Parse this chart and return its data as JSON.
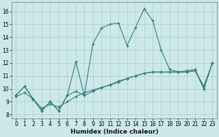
{
  "xlabel": "Humidex (Indice chaleur)",
  "bg_color": "#cde8e8",
  "line_color": "#2e7d7d",
  "grid_color": "#a8cccc",
  "xlim": [
    -0.5,
    23.5
  ],
  "ylim": [
    7.7,
    16.7
  ],
  "xticks": [
    0,
    1,
    2,
    3,
    4,
    5,
    6,
    7,
    8,
    9,
    10,
    11,
    12,
    13,
    14,
    15,
    16,
    17,
    18,
    19,
    20,
    21,
    22,
    23
  ],
  "yticks": [
    8,
    9,
    10,
    11,
    12,
    13,
    14,
    15,
    16
  ],
  "line1_x": [
    0,
    1,
    2,
    3,
    4,
    5,
    6,
    7,
    8,
    9,
    10,
    11,
    12,
    13,
    14,
    15,
    16,
    17,
    18,
    19,
    20,
    21,
    22,
    23
  ],
  "line1_y": [
    9.5,
    10.2,
    9.2,
    8.3,
    9.0,
    8.3,
    9.5,
    9.8,
    9.5,
    9.8,
    10.1,
    10.3,
    10.5,
    10.8,
    11.0,
    11.2,
    11.3,
    11.3,
    11.3,
    11.3,
    11.4,
    11.5,
    10.0,
    12.0
  ],
  "line2_x": [
    0,
    1,
    2,
    3,
    4,
    5,
    6,
    7,
    8,
    9,
    10,
    11,
    12,
    13,
    14,
    15,
    16,
    17,
    18,
    19,
    20,
    21,
    22,
    23
  ],
  "line2_y": [
    9.5,
    10.2,
    9.2,
    8.3,
    9.0,
    8.3,
    9.5,
    12.1,
    9.5,
    13.5,
    14.7,
    15.0,
    15.1,
    13.35,
    14.75,
    16.2,
    15.3,
    13.0,
    11.5,
    11.3,
    11.3,
    11.4,
    10.0,
    12.0
  ],
  "line3_x": [
    0,
    1,
    2,
    3,
    4,
    5,
    6,
    7,
    8,
    9,
    10,
    11,
    12,
    13,
    14,
    15,
    16,
    17,
    18,
    19,
    20,
    21,
    22,
    23
  ],
  "line3_y": [
    9.4,
    9.7,
    9.2,
    8.5,
    8.8,
    8.6,
    9.0,
    9.4,
    9.7,
    9.9,
    10.1,
    10.3,
    10.6,
    10.8,
    11.0,
    11.2,
    11.3,
    11.3,
    11.3,
    11.3,
    11.3,
    11.4,
    10.2,
    12.0
  ]
}
